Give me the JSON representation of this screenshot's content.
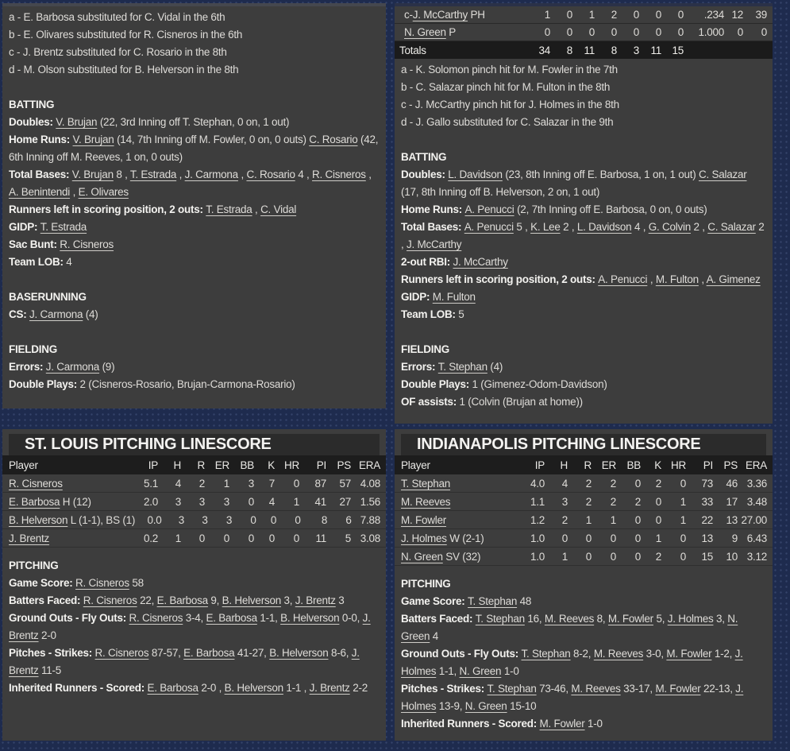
{
  "colors": {
    "background": "#1e2b4e",
    "panel": "#3d3d3d",
    "title_bar": "#2b2b2b",
    "table_header": "#1d1d1d",
    "totals_row": "#1b1b1b",
    "text": "#dedcd8",
    "link_underline": "#cfcdc8"
  },
  "stl_top": {
    "notes": [
      "a - E. Barbosa substituted for C. Vidal in the 6th",
      "b - E. Olivares substituted for R. Cisneros in the 6th",
      "c - J. Brentz substituted for C. Rosario in the 8th",
      "d - M. Olson substituted for B. Helverson in the 8th"
    ],
    "batting": {
      "title": "BATTING",
      "lines": [
        [
          [
            "Doubles: ",
            "b"
          ],
          [
            "V. Brujan",
            "u"
          ],
          [
            " (22, 3rd Inning off T. Stephan, 0 on, 1 out)",
            ""
          ]
        ],
        [
          [
            "Home Runs: ",
            "b"
          ],
          [
            "V. Brujan",
            "u"
          ],
          [
            " (14, 7th Inning off M. Fowler, 0 on, 0 outs) ",
            ""
          ],
          [
            "C. Rosario",
            "u"
          ],
          [
            " (42, 6th Inning off M. Reeves, 1 on, 0 outs)",
            ""
          ]
        ],
        [
          [
            "Total Bases: ",
            "b"
          ],
          [
            "V. Brujan",
            "u"
          ],
          [
            " 8 , ",
            ""
          ],
          [
            "T. Estrada",
            "u"
          ],
          [
            " , ",
            ""
          ],
          [
            "J. Carmona",
            "u"
          ],
          [
            " , ",
            ""
          ],
          [
            "C. Rosario",
            "u"
          ],
          [
            " 4 , ",
            ""
          ],
          [
            "R. Cisneros",
            "u"
          ],
          [
            " , ",
            ""
          ],
          [
            "A. Benintendi",
            "u"
          ],
          [
            " , ",
            ""
          ],
          [
            "E. Olivares",
            "u"
          ]
        ],
        [
          [
            "Runners left in scoring position, 2 outs: ",
            "b"
          ],
          [
            "T. Estrada",
            "u"
          ],
          [
            " , ",
            ""
          ],
          [
            "C. Vidal",
            "u"
          ]
        ],
        [
          [
            "GIDP: ",
            "b"
          ],
          [
            "T. Estrada",
            "u"
          ]
        ],
        [
          [
            "Sac Bunt: ",
            "b"
          ],
          [
            "R. Cisneros",
            "u"
          ]
        ],
        [
          [
            "Team LOB: ",
            "b"
          ],
          [
            " 4",
            ""
          ]
        ]
      ]
    },
    "baserunning": {
      "title": "BASERUNNING",
      "lines": [
        [
          [
            "CS: ",
            "b"
          ],
          [
            "J. Carmona",
            "u"
          ],
          [
            " (4)",
            ""
          ]
        ]
      ]
    },
    "fielding": {
      "title": "FIELDING",
      "lines": [
        [
          [
            "Errors: ",
            "b"
          ],
          [
            "J. Carmona",
            "u"
          ],
          [
            " (9)",
            ""
          ]
        ],
        [
          [
            "Double Plays: ",
            "b"
          ],
          [
            " 2 (Cisneros-Rosario, Brujan-Carmona-Rosario)",
            ""
          ]
        ]
      ]
    }
  },
  "ind_top": {
    "table": {
      "rows": [
        {
          "pre": "c-",
          "name": "J. McCarthy",
          "suf": " PH",
          "cells": [
            "1",
            "0",
            "1",
            "2",
            "0",
            "0",
            "0",
            ".234",
            "12",
            "39"
          ]
        },
        {
          "pre": "",
          "name": "N. Green",
          "suf": " P",
          "cells": [
            "0",
            "0",
            "0",
            "0",
            "0",
            "0",
            "0",
            "1.000",
            "0",
            "0"
          ]
        }
      ],
      "totals": {
        "label": "Totals",
        "cells": [
          "34",
          "8",
          "11",
          "8",
          "3",
          "11",
          "15",
          "",
          "",
          ""
        ]
      }
    },
    "notes": [
      "a - K. Solomon pinch hit for M. Fowler in the 7th",
      "b - C. Salazar pinch hit for M. Fulton in the 8th",
      "c - J. McCarthy pinch hit for J. Holmes in the 8th",
      "d - J. Gallo substituted for C. Salazar in the 9th"
    ],
    "batting": {
      "title": "BATTING",
      "lines": [
        [
          [
            "Doubles: ",
            "b"
          ],
          [
            "L. Davidson",
            "u"
          ],
          [
            " (23, 8th Inning off E. Barbosa, 1 on, 1 out) ",
            ""
          ],
          [
            "C. Salazar",
            "u"
          ],
          [
            " (17, 8th Inning off B. Helverson, 2 on, 1 out)",
            ""
          ]
        ],
        [
          [
            "Home Runs: ",
            "b"
          ],
          [
            "A. Penucci",
            "u"
          ],
          [
            " (2, 7th Inning off E. Barbosa, 0 on, 0 outs)",
            ""
          ]
        ],
        [
          [
            "Total Bases: ",
            "b"
          ],
          [
            "A. Penucci",
            "u"
          ],
          [
            " 5 , ",
            ""
          ],
          [
            "K. Lee",
            "u"
          ],
          [
            " 2 , ",
            ""
          ],
          [
            "L. Davidson",
            "u"
          ],
          [
            " 4 , ",
            ""
          ],
          [
            "G. Colvin",
            "u"
          ],
          [
            " 2 , ",
            ""
          ],
          [
            "C. Salazar",
            "u"
          ],
          [
            " 2 , ",
            ""
          ],
          [
            "J. McCarthy",
            "u"
          ]
        ],
        [
          [
            "2-out RBI: ",
            "b"
          ],
          [
            "J. McCarthy",
            "u"
          ]
        ],
        [
          [
            "Runners left in scoring position, 2 outs: ",
            "b"
          ],
          [
            "A. Penucci",
            "u"
          ],
          [
            " , ",
            ""
          ],
          [
            "M. Fulton",
            "u"
          ],
          [
            " , ",
            ""
          ],
          [
            "A. Gimenez",
            "u"
          ]
        ],
        [
          [
            "GIDP: ",
            "b"
          ],
          [
            "M. Fulton",
            "u"
          ]
        ],
        [
          [
            "Team LOB: ",
            "b"
          ],
          [
            " 5",
            ""
          ]
        ]
      ]
    },
    "fielding": {
      "title": "FIELDING",
      "lines": [
        [
          [
            "Errors: ",
            "b"
          ],
          [
            "T. Stephan",
            "u"
          ],
          [
            " (4)",
            ""
          ]
        ],
        [
          [
            "Double Plays: ",
            "b"
          ],
          [
            " 1 (Gimenez-Odom-Davidson)",
            ""
          ]
        ],
        [
          [
            "OF assists: ",
            "b"
          ],
          [
            " 1 (Colvin (Brujan at home))",
            ""
          ]
        ]
      ]
    }
  },
  "stl_pitching": {
    "title": "ST. LOUIS PITCHING LINESCORE",
    "table": {
      "headers": [
        "Player",
        "IP",
        "H",
        "R",
        "ER",
        "BB",
        "K",
        "HR",
        "PI",
        "PS",
        "ERA"
      ],
      "rows": [
        {
          "name": "R. Cisneros",
          "suf": "",
          "cells": [
            "5.1",
            "4",
            "2",
            "1",
            "3",
            "7",
            "0",
            "87",
            "57",
            "4.08"
          ]
        },
        {
          "name": "E. Barbosa",
          "suf": " H (12)",
          "cells": [
            "2.0",
            "3",
            "3",
            "3",
            "0",
            "4",
            "1",
            "41",
            "27",
            "1.56"
          ]
        },
        {
          "name": "B. Helverson",
          "suf": " L (1-1), BS (1)",
          "cells": [
            "0.0",
            "3",
            "3",
            "3",
            "0",
            "0",
            "0",
            "8",
            "6",
            "7.88"
          ]
        },
        {
          "name": "J. Brentz",
          "suf": "",
          "cells": [
            "0.2",
            "1",
            "0",
            "0",
            "0",
            "0",
            "0",
            "11",
            "5",
            "3.08"
          ]
        }
      ]
    },
    "pitching": {
      "title": "PITCHING",
      "lines": [
        [
          [
            "Game Score: ",
            "b"
          ],
          [
            "R. Cisneros",
            "u"
          ],
          [
            " 58",
            ""
          ]
        ],
        [
          [
            "Batters Faced: ",
            "b"
          ],
          [
            "R. Cisneros",
            "u"
          ],
          [
            " 22, ",
            ""
          ],
          [
            "E. Barbosa",
            "u"
          ],
          [
            " 9, ",
            ""
          ],
          [
            "B. Helverson",
            "u"
          ],
          [
            " 3, ",
            ""
          ],
          [
            "J. Brentz",
            "u"
          ],
          [
            " 3",
            ""
          ]
        ],
        [
          [
            "Ground Outs - Fly Outs: ",
            "b"
          ],
          [
            "R. Cisneros",
            "u"
          ],
          [
            " 3-4, ",
            ""
          ],
          [
            "E. Barbosa",
            "u"
          ],
          [
            " 1-1, ",
            ""
          ],
          [
            "B. Helverson",
            "u"
          ],
          [
            " 0-0, ",
            ""
          ],
          [
            "J. Brentz",
            "u"
          ],
          [
            " 2-0",
            ""
          ]
        ],
        [
          [
            "Pitches - Strikes: ",
            "b"
          ],
          [
            "R. Cisneros",
            "u"
          ],
          [
            " 87-57, ",
            ""
          ],
          [
            "E. Barbosa",
            "u"
          ],
          [
            " 41-27, ",
            ""
          ],
          [
            "B. Helverson",
            "u"
          ],
          [
            " 8-6, ",
            ""
          ],
          [
            "J. Brentz",
            "u"
          ],
          [
            " 11-5",
            ""
          ]
        ],
        [
          [
            "Inherited Runners - Scored: ",
            "b"
          ],
          [
            "E. Barbosa",
            "u"
          ],
          [
            " 2-0 , ",
            ""
          ],
          [
            "B. Helverson",
            "u"
          ],
          [
            " 1-1 , ",
            ""
          ],
          [
            "J. Brentz",
            "u"
          ],
          [
            " 2-2",
            ""
          ]
        ]
      ]
    }
  },
  "ind_pitching": {
    "title": "INDIANAPOLIS PITCHING LINESCORE",
    "table": {
      "headers": [
        "Player",
        "IP",
        "H",
        "R",
        "ER",
        "BB",
        "K",
        "HR",
        "PI",
        "PS",
        "ERA"
      ],
      "rows": [
        {
          "name": "T. Stephan",
          "suf": "",
          "cells": [
            "4.0",
            "4",
            "2",
            "2",
            "0",
            "2",
            "0",
            "73",
            "46",
            "3.36"
          ]
        },
        {
          "name": "M. Reeves",
          "suf": "",
          "cells": [
            "1.1",
            "3",
            "2",
            "2",
            "2",
            "0",
            "1",
            "33",
            "17",
            "3.48"
          ]
        },
        {
          "name": "M. Fowler",
          "suf": "",
          "cells": [
            "1.2",
            "2",
            "1",
            "1",
            "0",
            "0",
            "1",
            "22",
            "13",
            "27.00"
          ]
        },
        {
          "name": "J. Holmes",
          "suf": " W (2-1)",
          "cells": [
            "1.0",
            "0",
            "0",
            "0",
            "0",
            "1",
            "0",
            "13",
            "9",
            "6.43"
          ]
        },
        {
          "name": "N. Green",
          "suf": " SV (32)",
          "cells": [
            "1.0",
            "1",
            "0",
            "0",
            "0",
            "2",
            "0",
            "15",
            "10",
            "3.12"
          ]
        }
      ]
    },
    "pitching": {
      "title": "PITCHING",
      "lines": [
        [
          [
            "Game Score: ",
            "b"
          ],
          [
            "T. Stephan",
            "u"
          ],
          [
            " 48",
            ""
          ]
        ],
        [
          [
            "Batters Faced: ",
            "b"
          ],
          [
            "T. Stephan",
            "u"
          ],
          [
            " 16, ",
            ""
          ],
          [
            "M. Reeves",
            "u"
          ],
          [
            " 8, ",
            ""
          ],
          [
            "M. Fowler",
            "u"
          ],
          [
            " 5, ",
            ""
          ],
          [
            "J. Holmes",
            "u"
          ],
          [
            " 3, ",
            ""
          ],
          [
            "N. Green",
            "u"
          ],
          [
            " 4",
            ""
          ]
        ],
        [
          [
            "Ground Outs - Fly Outs: ",
            "b"
          ],
          [
            "T. Stephan",
            "u"
          ],
          [
            " 8-2, ",
            ""
          ],
          [
            "M. Reeves",
            "u"
          ],
          [
            " 3-0, ",
            ""
          ],
          [
            "M. Fowler",
            "u"
          ],
          [
            " 1-2, ",
            ""
          ],
          [
            "J. Holmes",
            "u"
          ],
          [
            " 1-1, ",
            ""
          ],
          [
            "N. Green",
            "u"
          ],
          [
            " 1-0",
            ""
          ]
        ],
        [
          [
            "Pitches - Strikes: ",
            "b"
          ],
          [
            "T. Stephan",
            "u"
          ],
          [
            " 73-46, ",
            ""
          ],
          [
            "M. Reeves",
            "u"
          ],
          [
            " 33-17, ",
            ""
          ],
          [
            "M. Fowler",
            "u"
          ],
          [
            " 22-13, ",
            ""
          ],
          [
            "J. Holmes",
            "u"
          ],
          [
            " 13-9, ",
            ""
          ],
          [
            "N. Green",
            "u"
          ],
          [
            " 15-10",
            ""
          ]
        ],
        [
          [
            "Inherited Runners - Scored: ",
            "b"
          ],
          [
            "M. Fowler",
            "u"
          ],
          [
            " 1-0",
            ""
          ]
        ]
      ]
    }
  }
}
